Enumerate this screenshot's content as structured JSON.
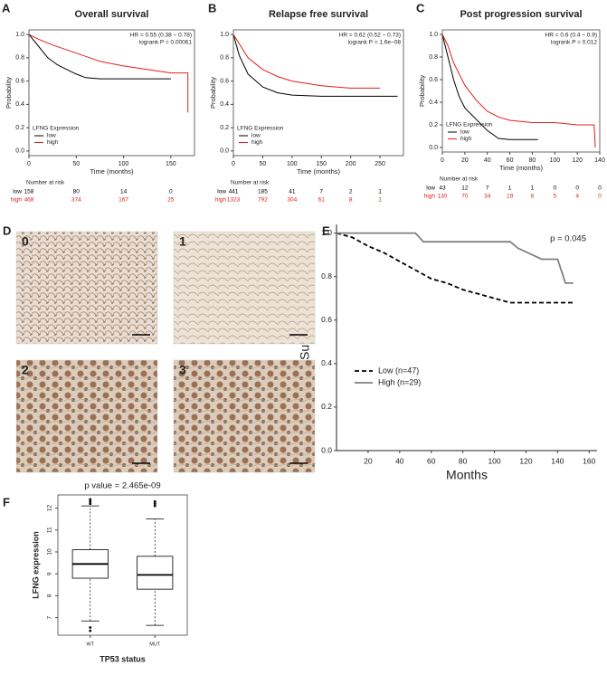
{
  "chart_data": [
    {
      "panel": "A",
      "type": "survival",
      "title": "Overall survival",
      "annotations": [
        "HR = 0.55 (0.38 − 0.78)",
        "logrank P = 0.00061"
      ],
      "xlabel": "Time (months)",
      "ylabel": "Probability",
      "xlim": [
        0,
        175
      ],
      "xticks": [
        0,
        50,
        100,
        150
      ],
      "ylim": [
        -0.04,
        1.04
      ],
      "yticks": [
        {
          "value": 0,
          "label": "0.0"
        },
        {
          "value": 0.2,
          "label": "0.2"
        },
        {
          "value": 0.4,
          "label": "0.4"
        },
        {
          "value": 0.6,
          "label": "0.6"
        },
        {
          "value": 0.8,
          "label": "0.8"
        },
        {
          "value": 1,
          "label": "1.0"
        }
      ],
      "frame": true,
      "legend_title": "LFNG Expression",
      "legend": "bottom-left",
      "series": [
        {
          "name": "low",
          "color": "#000000",
          "x": [
            0,
            10,
            20,
            30,
            40,
            50,
            60,
            75,
            100,
            125,
            150
          ],
          "values": [
            1,
            0.9,
            0.8,
            0.74,
            0.7,
            0.66,
            0.63,
            0.62,
            0.62,
            0.62,
            0.62
          ]
        },
        {
          "name": "high",
          "color": "#e0201b",
          "x": [
            0,
            10,
            25,
            50,
            75,
            100,
            125,
            150,
            168,
            168
          ],
          "values": [
            1,
            0.96,
            0.91,
            0.84,
            0.77,
            0.73,
            0.7,
            0.67,
            0.67,
            0.33
          ]
        }
      ],
      "risk_table": {
        "title": "Number at risk",
        "rows": [
          {
            "name": "low",
            "values": [
              158,
              80,
              14,
              0
            ]
          },
          {
            "name": "high",
            "values": [
              468,
              374,
              167,
              25
            ]
          }
        ]
      }
    },
    {
      "panel": "B",
      "type": "survival",
      "title": "Relapse free survival",
      "annotations": [
        "HR = 0.62 (0.52 − 0.73)",
        "logrank P = 1.6e−08"
      ],
      "xlabel": "Time (months)",
      "ylabel": "Probability",
      "xlim": [
        0,
        290
      ],
      "xticks": [
        0,
        50,
        100,
        150,
        200,
        250
      ],
      "ylim": [
        -0.04,
        1.04
      ],
      "yticks": [
        {
          "value": 0,
          "label": "0.0"
        },
        {
          "value": 0.2,
          "label": "0.2"
        },
        {
          "value": 0.4,
          "label": "0.4"
        },
        {
          "value": 0.6,
          "label": "0.6"
        },
        {
          "value": 0.8,
          "label": "0.8"
        },
        {
          "value": 1,
          "label": "1.0"
        }
      ],
      "frame": true,
      "legend_title": "LFNG Expression",
      "legend": "bottom-left",
      "series": [
        {
          "name": "low",
          "color": "#000000",
          "x": [
            0,
            10,
            25,
            50,
            75,
            100,
            150,
            200,
            280
          ],
          "values": [
            1,
            0.82,
            0.66,
            0.55,
            0.5,
            0.48,
            0.47,
            0.47,
            0.47
          ]
        },
        {
          "name": "high",
          "color": "#e0201b",
          "x": [
            0,
            10,
            25,
            50,
            75,
            100,
            150,
            200,
            250
          ],
          "values": [
            1,
            0.92,
            0.8,
            0.7,
            0.64,
            0.6,
            0.56,
            0.54,
            0.54
          ]
        }
      ],
      "risk_table": {
        "title": "Number at risk",
        "rows": [
          {
            "name": "low",
            "values": [
              441,
              185,
              41,
              7,
              2,
              1
            ]
          },
          {
            "name": "high",
            "values": [
              1323,
              792,
              304,
              61,
              8,
              1
            ]
          }
        ]
      }
    },
    {
      "panel": "C",
      "type": "survival",
      "title": "Post progression survival",
      "annotations": [
        "HR = 0.6 (0.4 − 0.9)",
        "logrank P = 0.012"
      ],
      "xlabel": "Time (months)",
      "ylabel": "Probability",
      "xlim": [
        0,
        140
      ],
      "xticks": [
        0,
        20,
        40,
        60,
        80,
        100,
        120,
        140
      ],
      "ylim": [
        -0.04,
        1.04
      ],
      "yticks": [
        {
          "value": 0,
          "label": "0.0"
        },
        {
          "value": 0.2,
          "label": "0.2"
        },
        {
          "value": 0.4,
          "label": "0.4"
        },
        {
          "value": 0.6,
          "label": "0.6"
        },
        {
          "value": 0.8,
          "label": "0.8"
        },
        {
          "value": 1,
          "label": "1.0"
        }
      ],
      "frame": true,
      "legend_title": "LFNG Expression",
      "legend": "bottom-left",
      "series": [
        {
          "name": "low",
          "color": "#000000",
          "x": [
            0,
            5,
            10,
            15,
            20,
            30,
            40,
            50,
            60,
            85
          ],
          "values": [
            1,
            0.8,
            0.6,
            0.45,
            0.35,
            0.25,
            0.15,
            0.08,
            0.07,
            0.07
          ]
        },
        {
          "name": "high",
          "color": "#e0201b",
          "x": [
            0,
            5,
            10,
            20,
            30,
            40,
            50,
            60,
            80,
            100,
            120,
            135,
            136
          ],
          "values": [
            1,
            0.9,
            0.75,
            0.55,
            0.42,
            0.32,
            0.27,
            0.24,
            0.22,
            0.22,
            0.2,
            0.2,
            0
          ]
        }
      ],
      "risk_table": {
        "title": "Number at risk",
        "rows": [
          {
            "name": "low",
            "values": [
              43,
              12,
              7,
              1,
              1,
              0,
              0,
              0
            ]
          },
          {
            "name": "high",
            "values": [
              130,
              70,
              34,
              19,
              8,
              5,
              4,
              0
            ]
          }
        ]
      }
    },
    {
      "panel": "E",
      "type": "survival",
      "annotations": [
        "p = 0.045"
      ],
      "xlabel": "Months",
      "ylabel": "Survival",
      "xlim": [
        0,
        165
      ],
      "xticks": [
        20,
        40,
        60,
        80,
        100,
        120,
        140,
        160
      ],
      "ylim": [
        0,
        1.04
      ],
      "yticks": [
        {
          "value": 0,
          "label": "0.0"
        },
        {
          "value": 0.2,
          "label": "0.2"
        },
        {
          "value": 0.4,
          "label": "0.4"
        },
        {
          "value": 0.6,
          "label": "0.6"
        },
        {
          "value": 0.8,
          "label": "0.8"
        },
        {
          "value": 1,
          "label": "1.0"
        }
      ],
      "frame": false,
      "legend": "bottom-left",
      "series": [
        {
          "name": "Low (n=47)",
          "color": "#000000",
          "dash": true,
          "x": [
            0,
            10,
            20,
            30,
            40,
            50,
            60,
            70,
            80,
            90,
            100,
            110,
            150
          ],
          "values": [
            1,
            0.98,
            0.94,
            0.91,
            0.87,
            0.83,
            0.79,
            0.77,
            0.74,
            0.72,
            0.7,
            0.68,
            0.68
          ]
        },
        {
          "name": "High (n=29)",
          "color": "#808080",
          "dash": false,
          "x": [
            0,
            50,
            55,
            110,
            115,
            130,
            140,
            145,
            150
          ],
          "values": [
            1,
            1,
            0.96,
            0.96,
            0.93,
            0.88,
            0.88,
            0.77,
            0.77
          ]
        }
      ]
    },
    {
      "panel": "F",
      "type": "box",
      "title": "p value = 2.465e-09",
      "xlabel": "TP53 status",
      "ylabel": "LFNG expression",
      "categories": [
        "WT",
        "MUT"
      ],
      "ylim": [
        6.2,
        12.6
      ],
      "yticks": [
        7,
        8,
        9,
        10,
        11,
        12
      ],
      "frame": true,
      "color": "#000000",
      "low": [
        6.85,
        6.65
      ],
      "q1": [
        8.8,
        8.3
      ],
      "median": [
        9.45,
        8.95
      ],
      "q3": [
        10.1,
        9.8
      ],
      "high": [
        12.1,
        11.5
      ],
      "outliers": [
        [
          6.4,
          6.55,
          12.2,
          12.3,
          12.4
        ],
        [
          12.1,
          12.2,
          12.3
        ]
      ]
    }
  ],
  "tissue_images": {
    "panel": "D",
    "labels": [
      "0",
      "1",
      "2",
      "3"
    ]
  }
}
